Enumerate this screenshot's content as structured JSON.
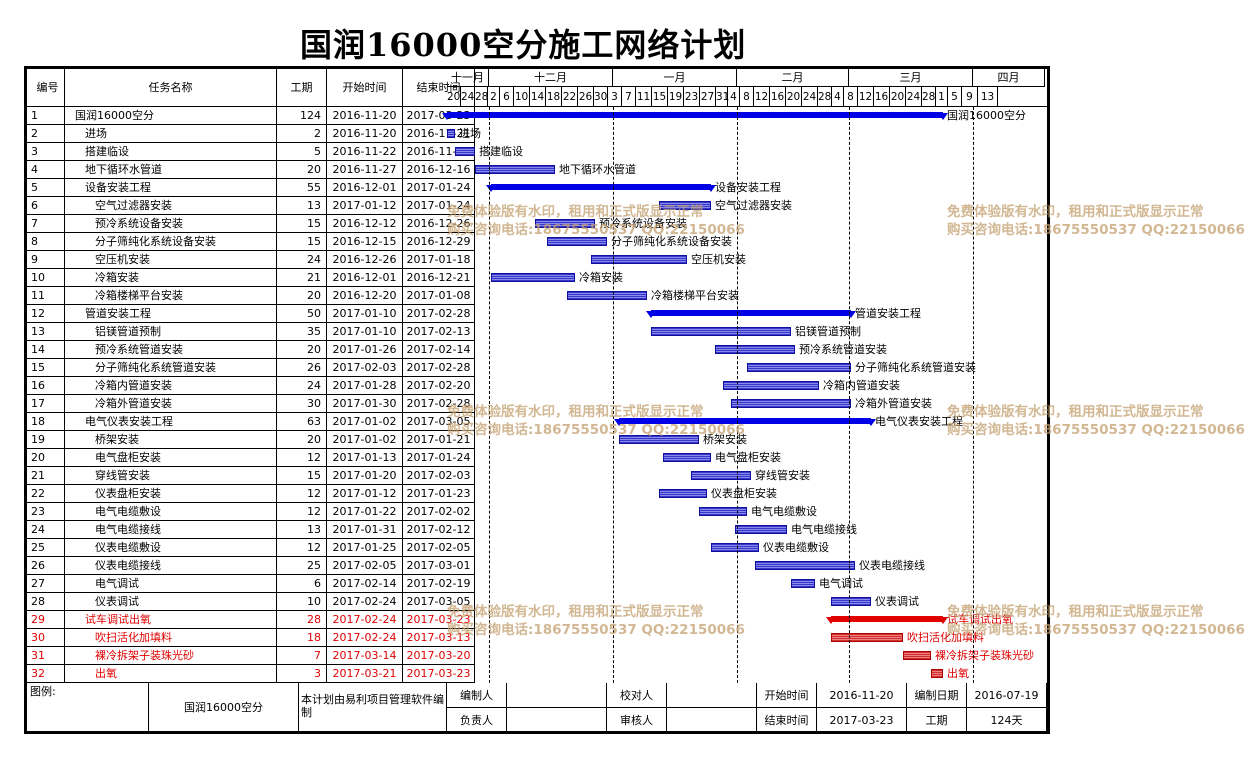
{
  "title": "国润16000空分施工网络计划",
  "headers": {
    "id": "编号",
    "name": "任务名称",
    "dur": "工期",
    "start": "开始时间",
    "end": "结束时间"
  },
  "months": [
    {
      "label": "十一月",
      "w": 42
    },
    {
      "label": "十二月",
      "w": 124
    },
    {
      "label": "一月",
      "w": 124
    },
    {
      "label": "二月",
      "w": 112
    },
    {
      "label": "三月",
      "w": 124
    },
    {
      "label": "四月",
      "w": 72
    }
  ],
  "days": [
    "20",
    "24",
    "28",
    "2",
    "6",
    "10",
    "14",
    "18",
    "22",
    "26",
    "30",
    "3",
    "7",
    "11",
    "15",
    "19",
    "23",
    "27",
    "31",
    "4",
    "8",
    "12",
    "16",
    "20",
    "24",
    "28",
    "4",
    "8",
    "12",
    "16",
    "20",
    "24",
    "28",
    "1",
    "5",
    "9",
    "13"
  ],
  "tasks": [
    {
      "id": "1",
      "name": "国润16000空分",
      "indent": 0,
      "dur": "124",
      "start": "2016-11-20",
      "end": "2017-03-23",
      "type": "summary",
      "red": false
    },
    {
      "id": "2",
      "name": "进场",
      "indent": 1,
      "dur": "2",
      "start": "2016-11-20",
      "end": "2016-11-21",
      "type": "task",
      "red": false
    },
    {
      "id": "3",
      "name": "搭建临设",
      "indent": 1,
      "dur": "5",
      "start": "2016-11-22",
      "end": "2016-11-26",
      "type": "task",
      "red": false
    },
    {
      "id": "4",
      "name": "地下循环水管道",
      "indent": 1,
      "dur": "20",
      "start": "2016-11-27",
      "end": "2016-12-16",
      "type": "task",
      "red": false
    },
    {
      "id": "5",
      "name": "设备安装工程",
      "indent": 1,
      "dur": "55",
      "start": "2016-12-01",
      "end": "2017-01-24",
      "type": "summary",
      "red": false
    },
    {
      "id": "6",
      "name": "空气过滤器安装",
      "indent": 2,
      "dur": "13",
      "start": "2017-01-12",
      "end": "2017-01-24",
      "type": "task",
      "red": false
    },
    {
      "id": "7",
      "name": "预冷系统设备安装",
      "indent": 2,
      "dur": "15",
      "start": "2016-12-12",
      "end": "2016-12-26",
      "type": "task",
      "red": false
    },
    {
      "id": "8",
      "name": "分子筛纯化系统设备安装",
      "indent": 2,
      "dur": "15",
      "start": "2016-12-15",
      "end": "2016-12-29",
      "type": "task",
      "red": false
    },
    {
      "id": "9",
      "name": "空压机安装",
      "indent": 2,
      "dur": "24",
      "start": "2016-12-26",
      "end": "2017-01-18",
      "type": "task",
      "red": false
    },
    {
      "id": "10",
      "name": "冷箱安装",
      "indent": 2,
      "dur": "21",
      "start": "2016-12-01",
      "end": "2016-12-21",
      "type": "task",
      "red": false
    },
    {
      "id": "11",
      "name": "冷箱楼梯平台安装",
      "indent": 2,
      "dur": "20",
      "start": "2016-12-20",
      "end": "2017-01-08",
      "type": "task",
      "red": false
    },
    {
      "id": "12",
      "name": "管道安装工程",
      "indent": 1,
      "dur": "50",
      "start": "2017-01-10",
      "end": "2017-02-28",
      "type": "summary",
      "red": false
    },
    {
      "id": "13",
      "name": "铝镁管道预制",
      "indent": 2,
      "dur": "35",
      "start": "2017-01-10",
      "end": "2017-02-13",
      "type": "task",
      "red": false
    },
    {
      "id": "14",
      "name": "预冷系统管道安装",
      "indent": 2,
      "dur": "20",
      "start": "2017-01-26",
      "end": "2017-02-14",
      "type": "task",
      "red": false
    },
    {
      "id": "15",
      "name": "分子筛纯化系统管道安装",
      "indent": 2,
      "dur": "26",
      "start": "2017-02-03",
      "end": "2017-02-28",
      "type": "task",
      "red": false
    },
    {
      "id": "16",
      "name": "冷箱内管道安装",
      "indent": 2,
      "dur": "24",
      "start": "2017-01-28",
      "end": "2017-02-20",
      "type": "task",
      "red": false
    },
    {
      "id": "17",
      "name": "冷箱外管道安装",
      "indent": 2,
      "dur": "30",
      "start": "2017-01-30",
      "end": "2017-02-28",
      "type": "task",
      "red": false
    },
    {
      "id": "18",
      "name": "电气仪表安装工程",
      "indent": 1,
      "dur": "63",
      "start": "2017-01-02",
      "end": "2017-03-05",
      "type": "summary",
      "red": false
    },
    {
      "id": "19",
      "name": "桥架安装",
      "indent": 2,
      "dur": "20",
      "start": "2017-01-02",
      "end": "2017-01-21",
      "type": "task",
      "red": false
    },
    {
      "id": "20",
      "name": "电气盘柜安装",
      "indent": 2,
      "dur": "12",
      "start": "2017-01-13",
      "end": "2017-01-24",
      "type": "task",
      "red": false
    },
    {
      "id": "21",
      "name": "穿线管安装",
      "indent": 2,
      "dur": "15",
      "start": "2017-01-20",
      "end": "2017-02-03",
      "type": "task",
      "red": false
    },
    {
      "id": "22",
      "name": "仪表盘柜安装",
      "indent": 2,
      "dur": "12",
      "start": "2017-01-12",
      "end": "2017-01-23",
      "type": "task",
      "red": false
    },
    {
      "id": "23",
      "name": "电气电缆敷设",
      "indent": 2,
      "dur": "12",
      "start": "2017-01-22",
      "end": "2017-02-02",
      "type": "task",
      "red": false
    },
    {
      "id": "24",
      "name": "电气电缆接线",
      "indent": 2,
      "dur": "13",
      "start": "2017-01-31",
      "end": "2017-02-12",
      "type": "task",
      "red": false
    },
    {
      "id": "25",
      "name": "仪表电缆敷设",
      "indent": 2,
      "dur": "12",
      "start": "2017-01-25",
      "end": "2017-02-05",
      "type": "task",
      "red": false
    },
    {
      "id": "26",
      "name": "仪表电缆接线",
      "indent": 2,
      "dur": "25",
      "start": "2017-02-05",
      "end": "2017-03-01",
      "type": "task",
      "red": false
    },
    {
      "id": "27",
      "name": "电气调试",
      "indent": 2,
      "dur": "6",
      "start": "2017-02-14",
      "end": "2017-02-19",
      "type": "task",
      "red": false
    },
    {
      "id": "28",
      "name": "仪表调试",
      "indent": 2,
      "dur": "10",
      "start": "2017-02-24",
      "end": "2017-03-05",
      "type": "task",
      "red": false
    },
    {
      "id": "29",
      "name": "试车调试出氧",
      "indent": 1,
      "dur": "28",
      "start": "2017-02-24",
      "end": "2017-03-23",
      "type": "summary",
      "red": true
    },
    {
      "id": "30",
      "name": "吹扫活化加填料",
      "indent": 2,
      "dur": "18",
      "start": "2017-02-24",
      "end": "2017-03-13",
      "type": "task",
      "red": true
    },
    {
      "id": "31",
      "name": "裸冷拆架子装珠光砂",
      "indent": 2,
      "dur": "7",
      "start": "2017-03-14",
      "end": "2017-03-20",
      "type": "task",
      "red": true
    },
    {
      "id": "32",
      "name": "出氧",
      "indent": 2,
      "dur": "3",
      "start": "2017-03-21",
      "end": "2017-03-23",
      "type": "task",
      "red": true
    }
  ],
  "watermark": {
    "line1": "免费体验版有水印，租用和正式版显示正常",
    "line2": "购买咨询电话:18675550537 QQ:22150066"
  },
  "footer": {
    "legend_label": "图例:",
    "project_name": "国润16000空分",
    "note": "本计划由易利项目管理软件编制",
    "editor_label": "编制人",
    "checker_label": "校对人",
    "start_label": "开始时间",
    "start_value": "2016-11-20",
    "edit_date_label": "编制日期",
    "edit_date_value": "2016-07-19",
    "owner_label": "负责人",
    "reviewer_label": "审核人",
    "end_label": "结束时间",
    "end_value": "2017-03-23",
    "duration_label": "工期",
    "duration_value": "124天"
  },
  "colors": {
    "task": "#5b5bdc",
    "summary": "#0000e6",
    "critical": "#e00000"
  }
}
